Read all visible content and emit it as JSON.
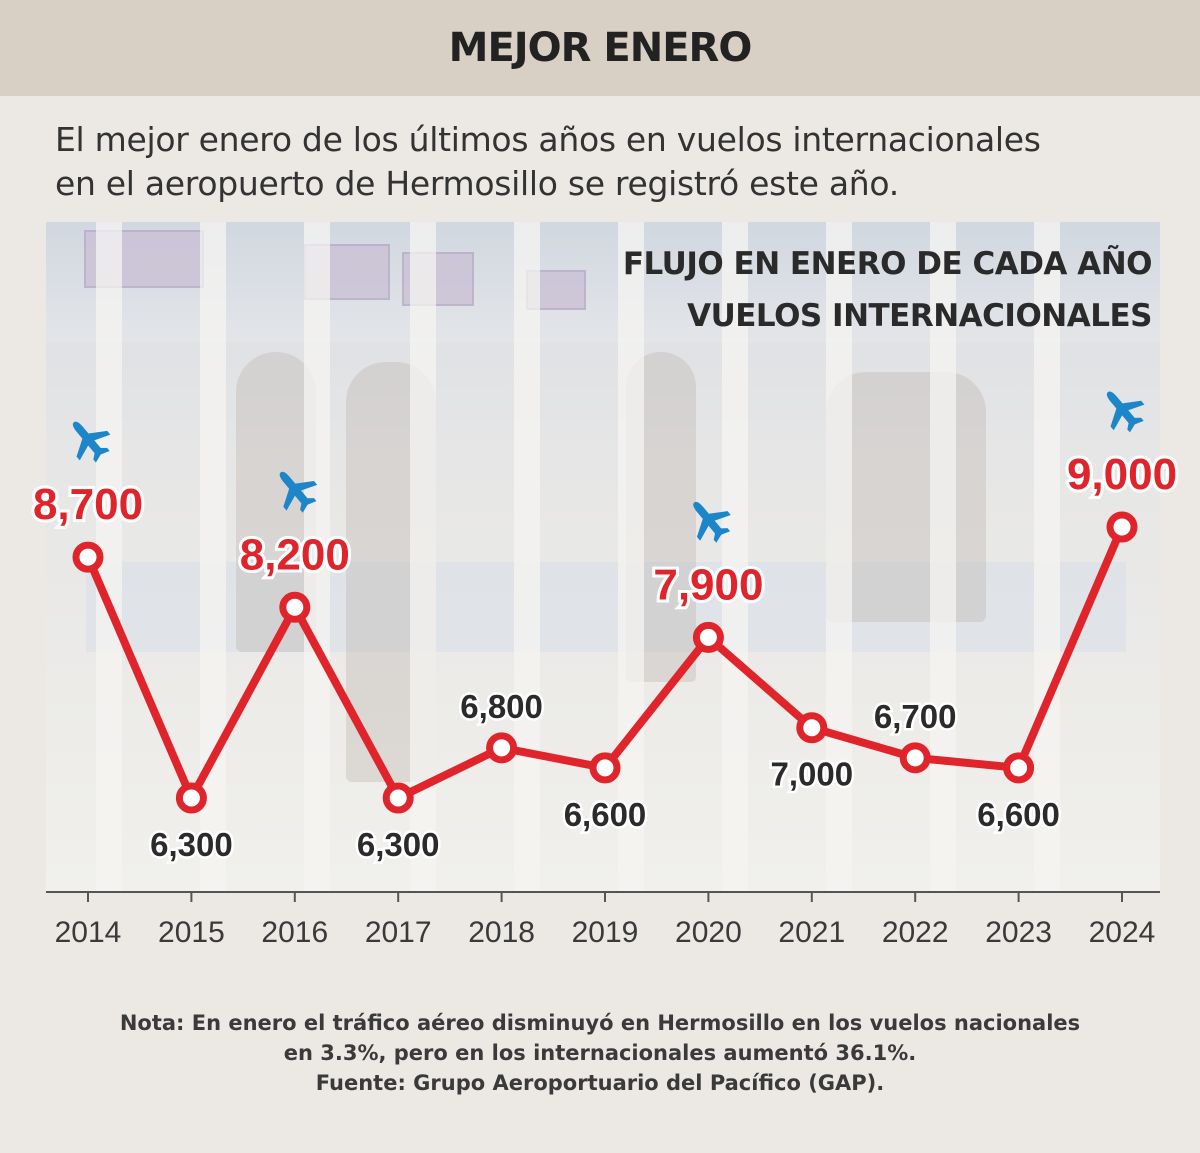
{
  "header": {
    "title": "MEJOR ENERO"
  },
  "subtitle": {
    "line1": "El mejor enero de los últimos años en vuelos internacionales",
    "line2": "en el aeropuerto de Hermosillo se registró este año."
  },
  "chart_heading": {
    "line1": "FLUJO EN ENERO DE CADA AÑO",
    "line2": "VUELOS INTERNACIONALES"
  },
  "colors": {
    "line": "#e0242b",
    "label_high": "#e0242b",
    "label_low": "#2b2b2b",
    "plane": "#1d86c8",
    "header_band": "#d8d0c4"
  },
  "chart_data": {
    "type": "line",
    "categories": [
      "2014",
      "2015",
      "2016",
      "2017",
      "2018",
      "2019",
      "2020",
      "2021",
      "2022",
      "2023",
      "2024"
    ],
    "values": [
      8700,
      6300,
      8200,
      6300,
      6800,
      6600,
      7900,
      7000,
      6700,
      6600,
      9000
    ],
    "labels": [
      "8,700",
      "6,300",
      "8,200",
      "6,300",
      "6,800",
      "6,600",
      "7,900",
      "7,000",
      "6,700",
      "6,600",
      "9,000"
    ],
    "highlighted_years": [
      "2014",
      "2016",
      "2020",
      "2024"
    ],
    "plane-icon": "airplane-icon",
    "title": "FLUJO EN ENERO DE CADA AÑO",
    "subtitle": "VUELOS INTERNACIONALES"
  },
  "note": {
    "line1": "Nota: En enero el tráfico aéreo disminuyó en Hermosillo en los vuelos nacionales",
    "line2": "en 3.3%, pero en los internacionales aumentó 36.1%.",
    "source": "Fuente: Grupo Aeroportuario del Pacífico (GAP)."
  }
}
